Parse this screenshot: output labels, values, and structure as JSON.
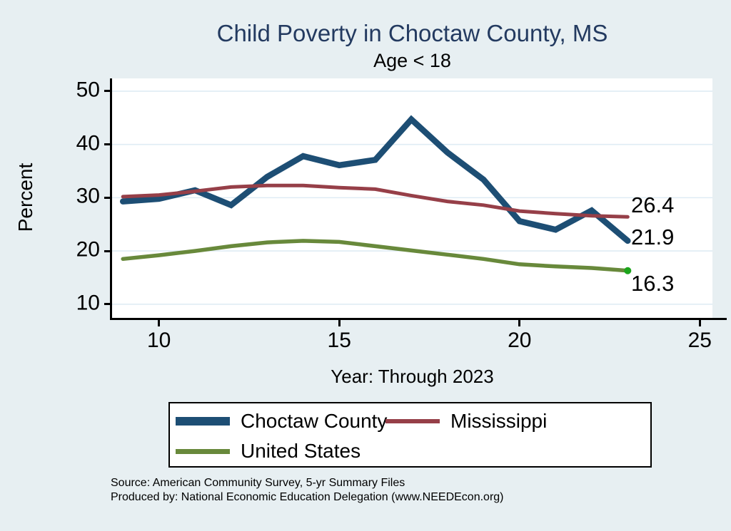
{
  "colors": {
    "background": "#e7eff2",
    "plot_background": "#ffffff",
    "grid": "#dfecf4",
    "axis": "#000000",
    "title_text": "#233a60",
    "end_marker": "#1ca51c"
  },
  "footer": {
    "source_line1": "Source: American Community Survey, 5-yr Summary Files",
    "source_line2": "Produced by: National Economic Education Delegation (www.NEEDEcon.org)"
  },
  "chart_data": {
    "type": "line",
    "title": "Child Poverty in Choctaw County, MS",
    "subtitle": "Age < 18",
    "xlabel": "Year: Through 2023",
    "ylabel": "Percent",
    "grid": true,
    "legend_position": "bottom",
    "xlim": [
      2008.7,
      2025.35
    ],
    "ylim": [
      7.3,
      52.4
    ],
    "x": [
      2009,
      2010,
      2011,
      2012,
      2013,
      2014,
      2015,
      2016,
      2017,
      2018,
      2019,
      2020,
      2021,
      2022,
      2023
    ],
    "x_ticks": [
      {
        "value": 2010,
        "label": "10"
      },
      {
        "value": 2015,
        "label": "15"
      },
      {
        "value": 2020,
        "label": "20"
      },
      {
        "value": 2025,
        "label": "25"
      }
    ],
    "y_ticks": [
      10,
      20,
      30,
      40,
      50
    ],
    "series": [
      {
        "name": "Choctaw County",
        "color": "#1d4e74",
        "width": 8.5,
        "end_label": "21.9",
        "values": [
          29.3,
          29.8,
          31.4,
          28.6,
          33.9,
          37.8,
          36.1,
          37.1,
          44.7,
          38.5,
          33.4,
          25.6,
          24.0,
          27.6,
          21.9
        ]
      },
      {
        "name": "Mississippi",
        "color": "#963f48",
        "width": 5,
        "end_label": "26.4",
        "values": [
          30.2,
          30.5,
          31.2,
          32.0,
          32.3,
          32.3,
          31.9,
          31.6,
          30.4,
          29.3,
          28.6,
          27.5,
          27.0,
          26.6,
          26.4
        ]
      },
      {
        "name": "United States",
        "color": "#68893b",
        "width": 5.5,
        "end_label": "16.3",
        "end_marker": true,
        "values": [
          18.5,
          19.2,
          20.0,
          20.9,
          21.6,
          21.9,
          21.7,
          20.9,
          20.1,
          19.3,
          18.5,
          17.5,
          17.1,
          16.8,
          16.3
        ]
      }
    ]
  }
}
